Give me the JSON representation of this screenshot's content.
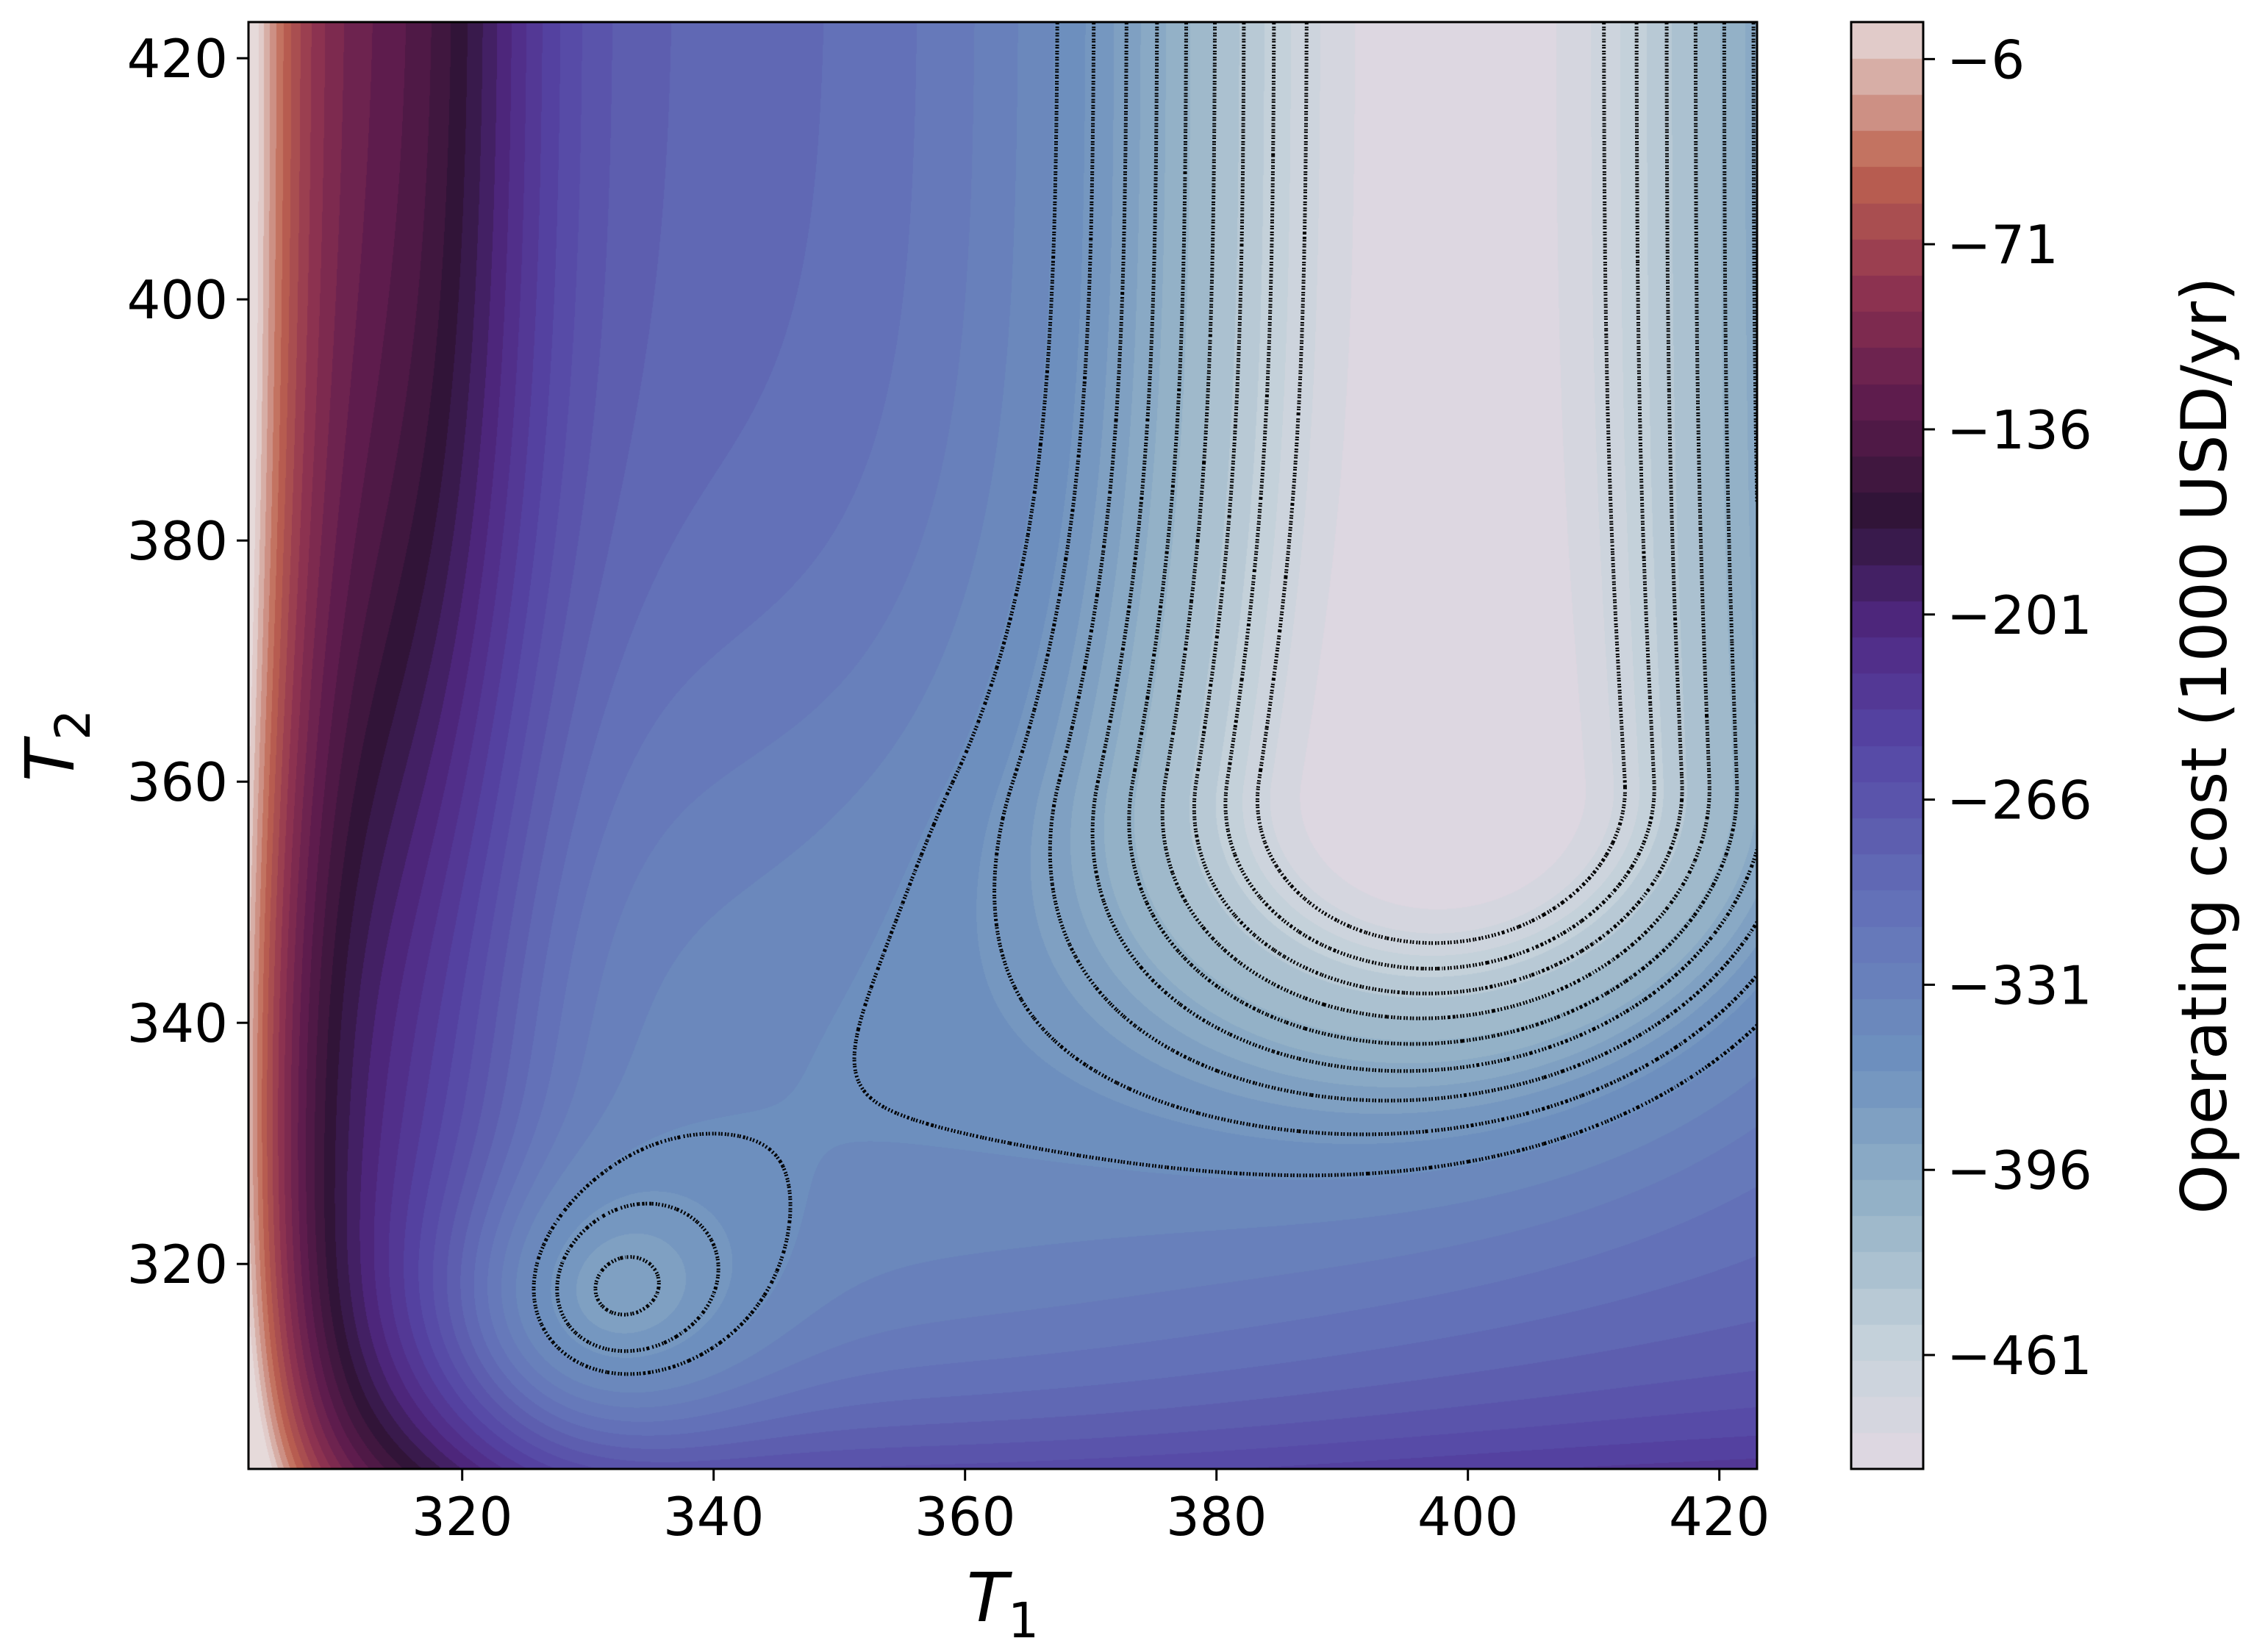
{
  "chart_data": {
    "type": "heatmap",
    "subtype": "filled-contour",
    "xlabel": "T",
    "xlabel_sub": "1",
    "ylabel": "T",
    "ylabel_sub": "2",
    "xlim": [
      303,
      423
    ],
    "ylim": [
      303,
      423
    ],
    "xticks": [
      320,
      340,
      360,
      380,
      400,
      420
    ],
    "yticks": [
      320,
      340,
      360,
      380,
      400,
      420
    ],
    "colorbar": {
      "label": "Operating cost (1000 USD/yr)",
      "range": [
        -501,
        7
      ],
      "ticks": [
        -6,
        -71,
        -136,
        -201,
        -266,
        -331,
        -396,
        -461
      ],
      "tick_labels": [
        "−6",
        "−71",
        "−136",
        "−201",
        "−266",
        "−331",
        "−396",
        "−461"
      ],
      "colormap": "twilight_shifted",
      "levels": 40
    },
    "contour_lines": {
      "style": "dashed",
      "color": "#000000",
      "levels": [
        -470,
        -455,
        -440,
        -425,
        -410,
        -395,
        -380,
        -365,
        -350
      ]
    },
    "features": [
      {
        "kind": "global-minimum-region",
        "x": [
          390,
          410
        ],
        "y": [
          355,
          423
        ],
        "approx_value": -490
      },
      {
        "kind": "local-minimum",
        "x": 330,
        "y": 316,
        "approx_value": -420
      },
      {
        "kind": "maximum-edge",
        "x": 303,
        "y_range": [
          303,
          423
        ],
        "approx_value": 0
      }
    ],
    "grid": false,
    "legend": "none"
  },
  "colors": {
    "colormap_low": "#dcd6dd",
    "colormap_mid_blue": "#6a82bf",
    "colormap_purple": "#4e2a86",
    "colormap_dark": "#2e1334",
    "colormap_red": "#a23e57",
    "colormap_high": "#e3d5d4"
  }
}
